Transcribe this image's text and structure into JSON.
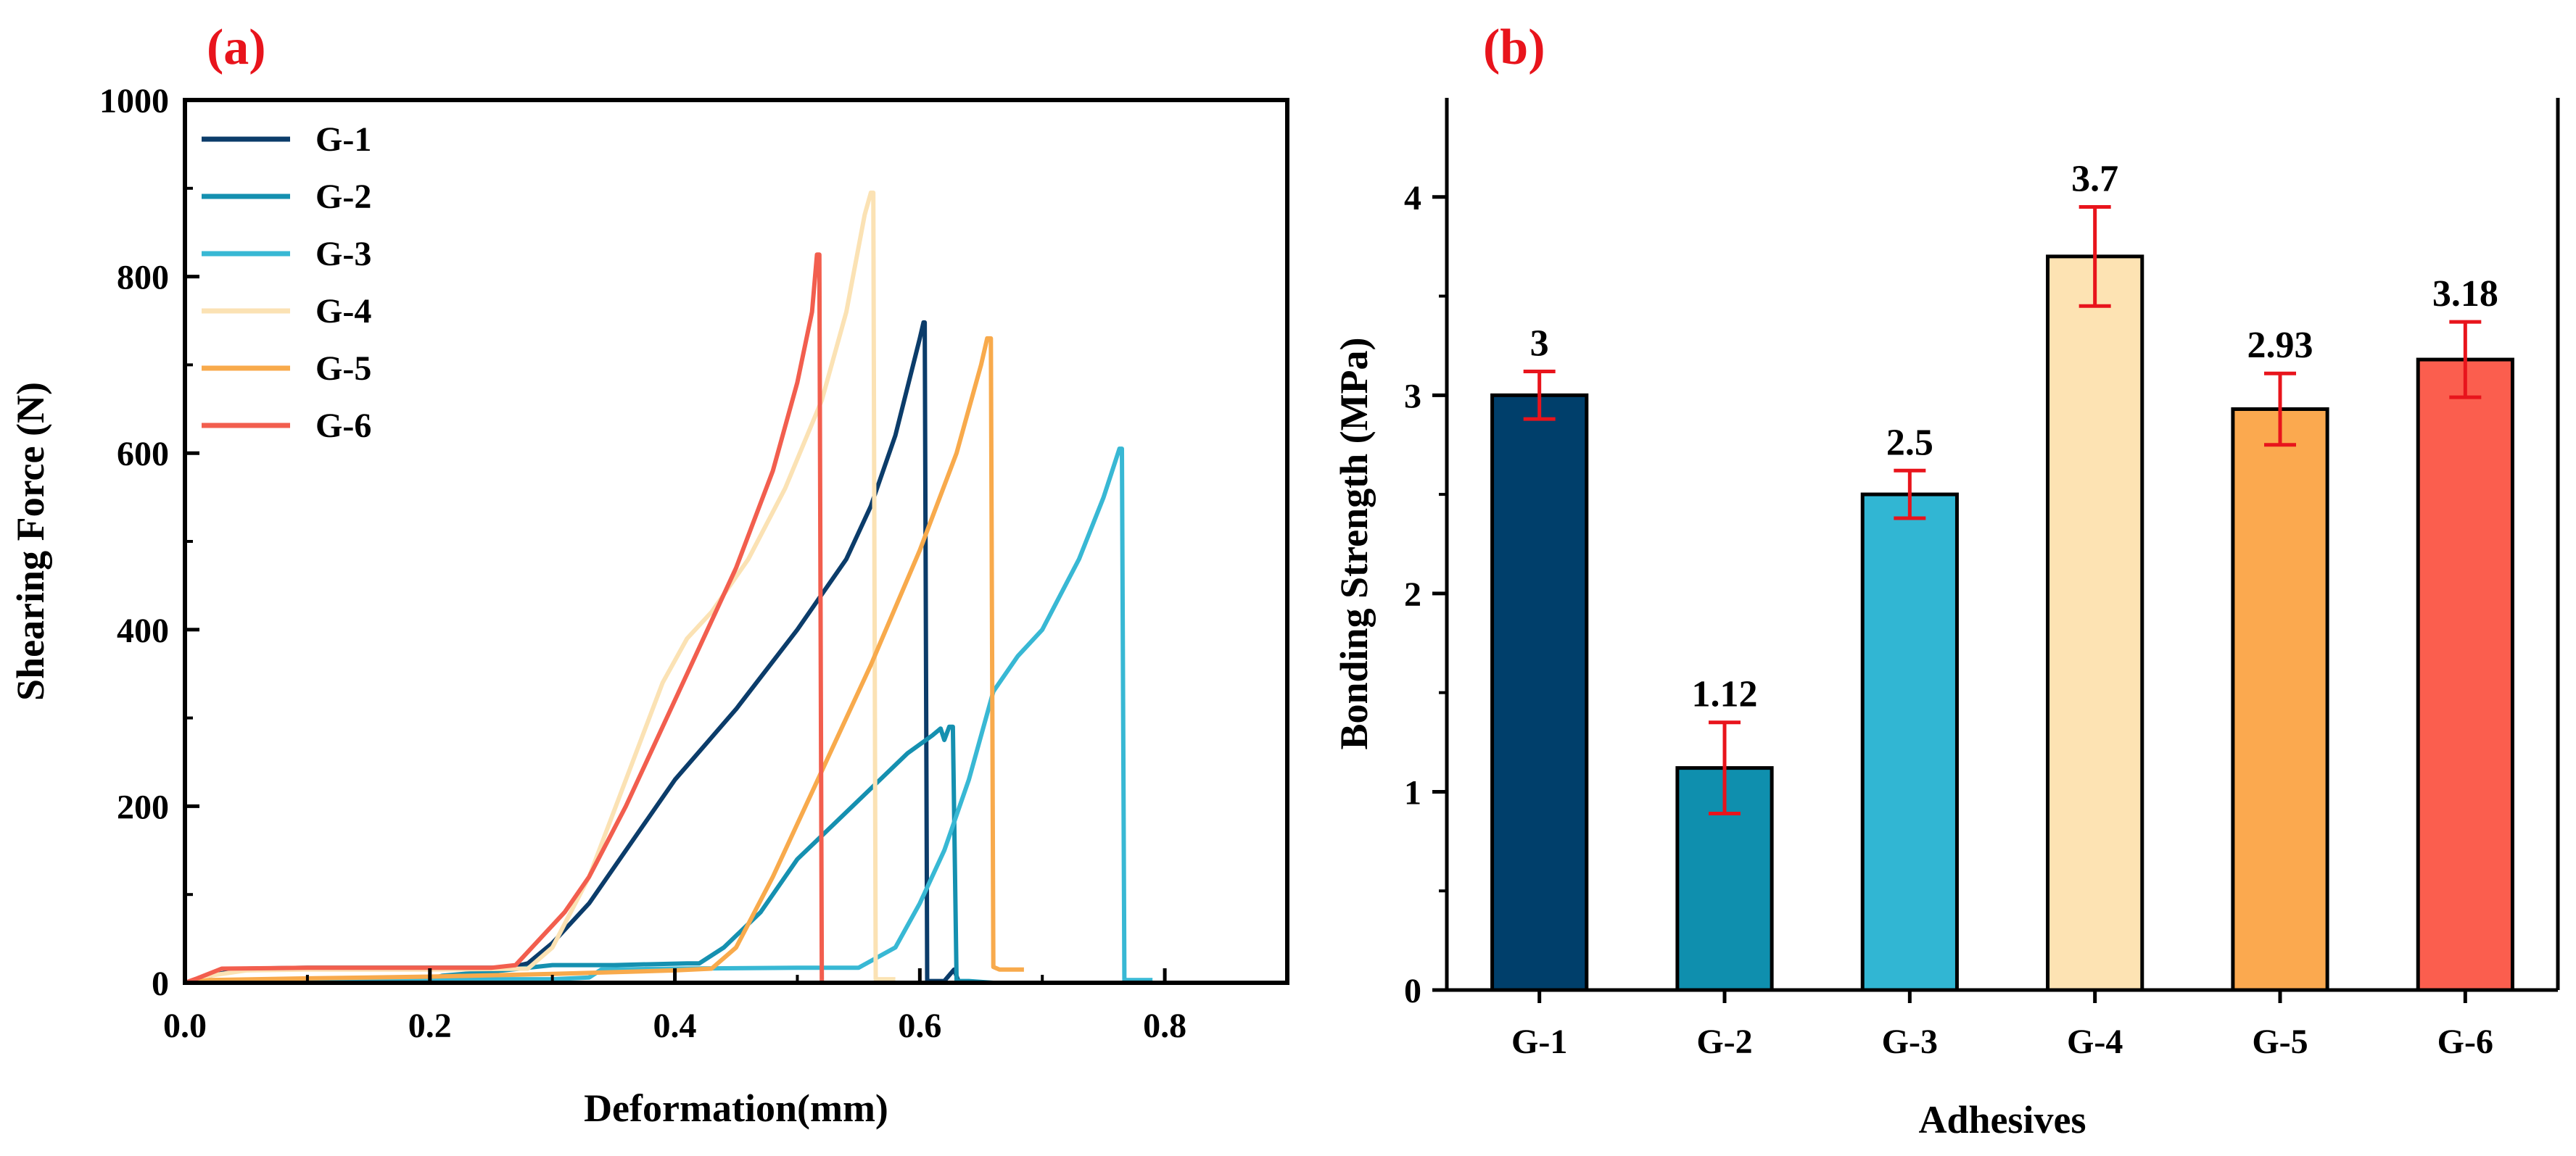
{
  "chart_data": [
    {
      "type": "line",
      "panel_label": "(a)",
      "title": "",
      "xlabel": "Deformation(mm)",
      "ylabel": "Shearing Force (N)",
      "xlim": [
        0,
        0.9
      ],
      "ylim": [
        0,
        1000
      ],
      "x_ticks": [
        "0.0",
        "0.2",
        "0.4",
        "0.6",
        "0.8"
      ],
      "y_ticks": [
        "0",
        "200",
        "400",
        "600",
        "800",
        "1000"
      ],
      "legend_position": "top-left",
      "grid": false,
      "series": [
        {
          "name": "G-1",
          "color": "#0b3c6a",
          "points": [
            [
              0,
              0
            ],
            [
              0.02,
              8
            ],
            [
              0.05,
              16
            ],
            [
              0.1,
              17
            ],
            [
              0.2,
              17
            ],
            [
              0.265,
              17
            ],
            [
              0.28,
              22
            ],
            [
              0.3,
              45
            ],
            [
              0.33,
              90
            ],
            [
              0.36,
              150
            ],
            [
              0.4,
              230
            ],
            [
              0.45,
              310
            ],
            [
              0.5,
              400
            ],
            [
              0.54,
              480
            ],
            [
              0.56,
              540
            ],
            [
              0.58,
              620
            ],
            [
              0.6,
              730
            ],
            [
              0.603,
              748
            ],
            [
              0.604,
              748
            ],
            [
              0.606,
              2
            ],
            [
              0.62,
              2
            ],
            [
              0.628,
              15
            ],
            [
              0.632,
              0
            ]
          ]
        },
        {
          "name": "G-2",
          "color": "#1590b0",
          "points": [
            [
              0,
              0
            ],
            [
              0.1,
              2
            ],
            [
              0.2,
              4
            ],
            [
              0.21,
              8
            ],
            [
              0.26,
              14
            ],
            [
              0.3,
              20
            ],
            [
              0.35,
              20
            ],
            [
              0.41,
              22
            ],
            [
              0.42,
              22
            ],
            [
              0.44,
              40
            ],
            [
              0.47,
              80
            ],
            [
              0.5,
              140
            ],
            [
              0.53,
              180
            ],
            [
              0.56,
              220
            ],
            [
              0.59,
              260
            ],
            [
              0.61,
              280
            ],
            [
              0.617,
              288
            ],
            [
              0.62,
              275
            ],
            [
              0.624,
              290
            ],
            [
              0.627,
              290
            ],
            [
              0.63,
              2
            ],
            [
              0.64,
              2
            ],
            [
              0.66,
              0
            ]
          ]
        },
        {
          "name": "G-3",
          "color": "#38b8d4",
          "points": [
            [
              0,
              0
            ],
            [
              0.1,
              3
            ],
            [
              0.2,
              4
            ],
            [
              0.3,
              4
            ],
            [
              0.33,
              6
            ],
            [
              0.34,
              15
            ],
            [
              0.4,
              16
            ],
            [
              0.5,
              17
            ],
            [
              0.55,
              17
            ],
            [
              0.58,
              40
            ],
            [
              0.6,
              90
            ],
            [
              0.62,
              150
            ],
            [
              0.64,
              230
            ],
            [
              0.66,
              330
            ],
            [
              0.68,
              370
            ],
            [
              0.7,
              400
            ],
            [
              0.73,
              480
            ],
            [
              0.75,
              550
            ],
            [
              0.763,
              605
            ],
            [
              0.765,
              605
            ],
            [
              0.767,
              3
            ],
            [
              0.79,
              3
            ]
          ]
        },
        {
          "name": "G-4",
          "color": "#fbe2b4",
          "points": [
            [
              0,
              0
            ],
            [
              0.02,
              8
            ],
            [
              0.05,
              14
            ],
            [
              0.1,
              15
            ],
            [
              0.2,
              15
            ],
            [
              0.28,
              16
            ],
            [
              0.3,
              40
            ],
            [
              0.33,
              120
            ],
            [
              0.36,
              230
            ],
            [
              0.39,
              340
            ],
            [
              0.41,
              390
            ],
            [
              0.43,
              420
            ],
            [
              0.46,
              480
            ],
            [
              0.49,
              560
            ],
            [
              0.52,
              660
            ],
            [
              0.54,
              760
            ],
            [
              0.555,
              870
            ],
            [
              0.56,
              895
            ],
            [
              0.562,
              895
            ],
            [
              0.564,
              4
            ],
            [
              0.58,
              4
            ]
          ]
        },
        {
          "name": "G-5",
          "color": "#f8aa4c",
          "points": [
            [
              0,
              0
            ],
            [
              0.02,
              3
            ],
            [
              0.1,
              5
            ],
            [
              0.2,
              7
            ],
            [
              0.3,
              10
            ],
            [
              0.4,
              14
            ],
            [
              0.43,
              16
            ],
            [
              0.45,
              40
            ],
            [
              0.48,
              120
            ],
            [
              0.52,
              240
            ],
            [
              0.56,
              360
            ],
            [
              0.6,
              490
            ],
            [
              0.63,
              600
            ],
            [
              0.65,
              700
            ],
            [
              0.655,
              730
            ],
            [
              0.658,
              730
            ],
            [
              0.66,
              18
            ],
            [
              0.665,
              15
            ],
            [
              0.685,
              15
            ]
          ]
        },
        {
          "name": "G-6",
          "color": "#f25e4e",
          "points": [
            [
              0,
              0
            ],
            [
              0.01,
              5
            ],
            [
              0.03,
              16
            ],
            [
              0.1,
              17
            ],
            [
              0.2,
              17
            ],
            [
              0.25,
              17
            ],
            [
              0.27,
              20
            ],
            [
              0.29,
              50
            ],
            [
              0.31,
              80
            ],
            [
              0.33,
              120
            ],
            [
              0.36,
              200
            ],
            [
              0.39,
              290
            ],
            [
              0.42,
              380
            ],
            [
              0.45,
              470
            ],
            [
              0.48,
              580
            ],
            [
              0.5,
              680
            ],
            [
              0.512,
              760
            ],
            [
              0.516,
              825
            ],
            [
              0.518,
              825
            ],
            [
              0.52,
              0
            ]
          ]
        }
      ]
    },
    {
      "type": "bar",
      "panel_label": "(b)",
      "title": "",
      "xlabel": "Adhesives",
      "ylabel": "Bonding Strength (MPa)",
      "ylim": [
        0,
        4.5
      ],
      "y_ticks": [
        "0",
        "1",
        "2",
        "3",
        "4"
      ],
      "categories": [
        "G-1",
        "G-2",
        "G-3",
        "G-4",
        "G-5",
        "G-6"
      ],
      "values": [
        3.0,
        1.12,
        2.5,
        3.7,
        2.93,
        3.18
      ],
      "value_labels": [
        "3",
        "1.12",
        "2.5",
        "3.7",
        "2.93",
        "3.18"
      ],
      "errors": [
        0.12,
        0.23,
        0.12,
        0.25,
        0.18,
        0.19
      ],
      "colors": [
        "#003f6b",
        "#0f8fae",
        "#31b6d3",
        "#fde3b3",
        "#fba94f",
        "#fb5e4e"
      ],
      "error_bar_color": "#e8141c",
      "grid": false
    }
  ]
}
